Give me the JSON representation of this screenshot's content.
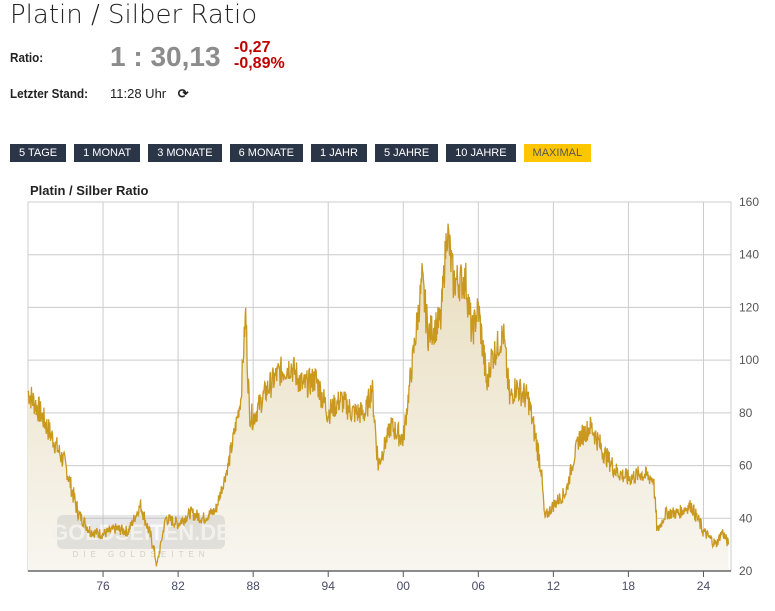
{
  "header": {
    "title": "Platin / Silber Ratio",
    "ratio_label": "Ratio:",
    "ratio_value": "1 : 30,13",
    "change_abs": "-0,27",
    "change_pct": "-0,89%",
    "updated_label": "Letzter Stand:",
    "updated_time": "11:28 Uhr"
  },
  "ranges": [
    {
      "label": "5 TAGE"
    },
    {
      "label": "1 MONAT"
    },
    {
      "label": "3 MONATE"
    },
    {
      "label": "6 MONATE"
    },
    {
      "label": "1 JAHR"
    },
    {
      "label": "5 JAHRE"
    },
    {
      "label": "10 JAHRE"
    },
    {
      "label": "MAXIMAL",
      "active": true
    }
  ],
  "watermark": {
    "main": "GOLDSEITEN.DE",
    "sub": "DIE GOLDSEITEN"
  },
  "colors": {
    "line": "#c9981f",
    "button": "#2b3548",
    "active": "#ffc600",
    "negative": "#c00000"
  },
  "chart_data": {
    "type": "line",
    "title": "Platin / Silber Ratio",
    "xlabel": "",
    "ylabel": "",
    "xlim": [
      1970,
      2026.2
    ],
    "ylim": [
      20,
      160
    ],
    "grid": true,
    "xticks": [
      {
        "v": 1976,
        "label": "76"
      },
      {
        "v": 1982,
        "label": "82"
      },
      {
        "v": 1988,
        "label": "88"
      },
      {
        "v": 1994,
        "label": "94"
      },
      {
        "v": 2000,
        "label": "00"
      },
      {
        "v": 2006,
        "label": "06"
      },
      {
        "v": 2012,
        "label": "12"
      },
      {
        "v": 2018,
        "label": "18"
      },
      {
        "v": 2024,
        "label": "24"
      }
    ],
    "yticks": [
      20,
      40,
      60,
      80,
      100,
      120,
      140,
      160
    ],
    "x": [
      1970,
      1971,
      1972,
      1973,
      1974,
      1975,
      1976,
      1977,
      1978,
      1979,
      1980,
      1980.3,
      1981,
      1982,
      1983,
      1984,
      1985,
      1986,
      1987,
      1987.4,
      1987.7,
      1988,
      1989,
      1990,
      1991,
      1992,
      1993,
      1994,
      1995,
      1996,
      1997,
      1997.5,
      1998,
      1999,
      2000,
      2000.5,
      2001,
      2001.5,
      2002,
      2003,
      2003.5,
      2004,
      2005,
      2005.5,
      2006,
      2006.7,
      2007,
      2008,
      2008.5,
      2009,
      2010,
      2011,
      2011.3,
      2012,
      2013,
      2014,
      2015,
      2016,
      2017,
      2018,
      2019,
      2020,
      2020.3,
      2021,
      2022,
      2023,
      2024,
      2025,
      2025.5,
      2026
    ],
    "values": [
      88,
      80,
      70,
      60,
      42,
      35,
      34,
      36,
      35,
      45,
      30,
      22,
      40,
      38,
      42,
      40,
      43,
      60,
      85,
      118,
      80,
      78,
      88,
      95,
      98,
      90,
      93,
      80,
      85,
      80,
      80,
      90,
      60,
      75,
      70,
      90,
      110,
      130,
      110,
      115,
      150,
      130,
      130,
      110,
      120,
      90,
      100,
      110,
      85,
      90,
      85,
      60,
      40,
      45,
      50,
      70,
      75,
      65,
      58,
      55,
      57,
      55,
      35,
      42,
      42,
      45,
      35,
      30,
      35,
      30
    ]
  }
}
